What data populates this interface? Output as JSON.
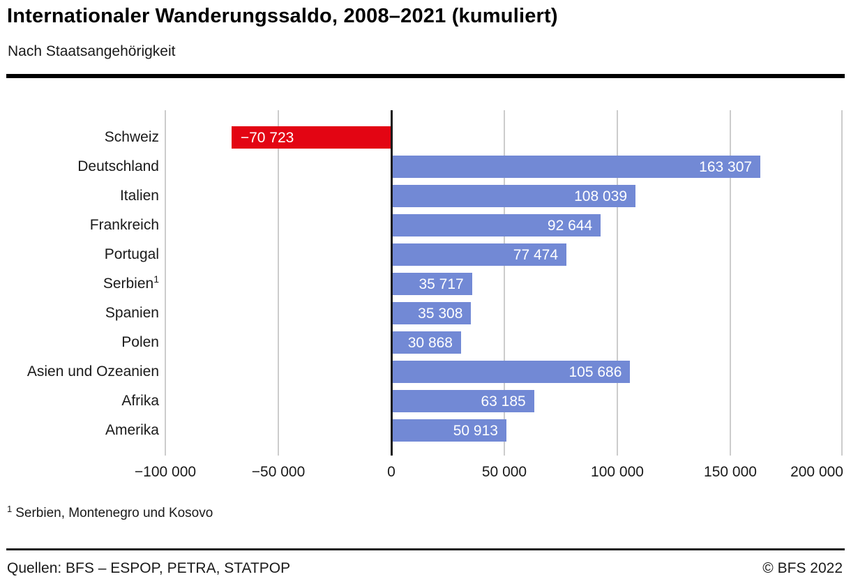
{
  "header": {
    "title": "Internationaler Wanderungssaldo, 2008–2021 (kumuliert)",
    "subtitle": "Nach Staatsangehörigkeit"
  },
  "chart_data": {
    "type": "bar",
    "orientation": "horizontal",
    "title": "Internationaler Wanderungssaldo, 2008–2021 (kumuliert)",
    "subtitle": "Nach Staatsangehörigkeit",
    "xlim": [
      -100000,
      200000
    ],
    "x_tick_values": [
      -100000,
      -50000,
      0,
      50000,
      100000,
      150000,
      200000
    ],
    "x_tick_labels": [
      "−100 000",
      "−50 000",
      "0",
      "50 000",
      "100 000",
      "150 000",
      "200 000"
    ],
    "grid": "vertical-gridlines-on",
    "legend": "none",
    "categories": [
      "Schweiz",
      "Deutschland",
      "Italien",
      "Frankreich",
      "Portugal",
      "Serbien¹",
      "Spanien",
      "Polen",
      "Asien und Ozeanien",
      "Afrika",
      "Amerika"
    ],
    "rows": [
      {
        "label": "Schweiz",
        "sup": "",
        "value": -70723,
        "display": "−70 723",
        "color": "#e30513"
      },
      {
        "label": "Deutschland",
        "sup": "",
        "value": 163307,
        "display": "163 307",
        "color": "#7289d5"
      },
      {
        "label": "Italien",
        "sup": "",
        "value": 108039,
        "display": "108 039",
        "color": "#7289d5"
      },
      {
        "label": "Frankreich",
        "sup": "",
        "value": 92644,
        "display": "92 644",
        "color": "#7289d5"
      },
      {
        "label": "Portugal",
        "sup": "",
        "value": 77474,
        "display": "77 474",
        "color": "#7289d5"
      },
      {
        "label": "Serbien",
        "sup": "1",
        "value": 35717,
        "display": "35 717",
        "color": "#7289d5"
      },
      {
        "label": "Spanien",
        "sup": "",
        "value": 35308,
        "display": "35 308",
        "color": "#7289d5"
      },
      {
        "label": "Polen",
        "sup": "",
        "value": 30868,
        "display": "30 868",
        "color": "#7289d5"
      },
      {
        "label": "Asien und Ozeanien",
        "sup": "",
        "value": 105686,
        "display": "105 686",
        "color": "#7289d5"
      },
      {
        "label": "Afrika",
        "sup": "",
        "value": 63185,
        "display": "63 185",
        "color": "#7289d5"
      },
      {
        "label": "Amerika",
        "sup": "",
        "value": 50913,
        "display": "50 913",
        "color": "#7289d5"
      }
    ],
    "colors": {
      "positive": "#7289d5",
      "negative": "#e30513",
      "gridline": "#cccccc",
      "zero_line": "#1a1a1a"
    }
  },
  "footnote": {
    "marker": "1",
    "text": "Serbien, Montenegro und Kosovo"
  },
  "footer": {
    "sources": "Quellen: BFS – ESPOP, PETRA, STATPOP",
    "copyright": "© BFS 2022"
  }
}
